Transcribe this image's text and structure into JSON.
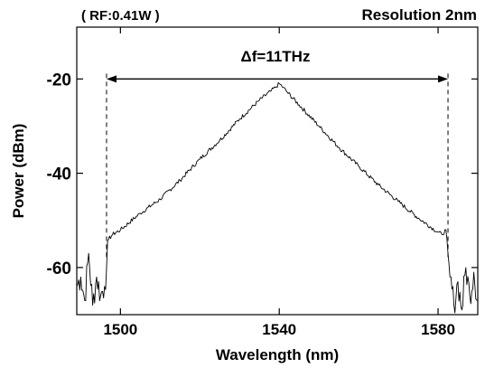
{
  "chart_data": {
    "type": "line",
    "title_left": "( RF:0.41W )",
    "title_right": "Resolution 2nm",
    "xlabel": "Wavelength (nm)",
    "ylabel": "Power (dBm)",
    "xlim": [
      1489,
      1590
    ],
    "ylim": [
      -70,
      -9
    ],
    "xticks": [
      1500,
      1540,
      1580
    ],
    "yticks": [
      -20,
      -40,
      -60
    ],
    "xtick_labels": [
      "1500",
      "1540",
      "1580"
    ],
    "ytick_labels": [
      "-20",
      "-40",
      "-60"
    ],
    "grid": false,
    "annotation": {
      "text": "Δf=11THz",
      "left_marker_x": 1496.5,
      "right_marker_x": 1582.5,
      "arrow_y": -20
    },
    "series": [
      {
        "x": [
          1489,
          1490,
          1491,
          1492,
          1493,
          1494,
          1495,
          1496,
          1496.5,
          1497,
          1498,
          1500,
          1505,
          1510,
          1515,
          1520,
          1525,
          1530,
          1535,
          1538,
          1539,
          1540,
          1541,
          1542,
          1545,
          1550,
          1555,
          1560,
          1565,
          1570,
          1575,
          1580,
          1581,
          1582,
          1582.5,
          1583,
          1584,
          1585,
          1586,
          1587,
          1588,
          1589,
          1590
        ],
        "y": [
          -64,
          -62,
          -67,
          -57,
          -68,
          -62,
          -66,
          -64,
          -60,
          -54,
          -53,
          -52,
          -48.5,
          -45.5,
          -41.5,
          -37,
          -33,
          -28.5,
          -24.5,
          -22.5,
          -21.8,
          -21,
          -21.8,
          -22.8,
          -25.5,
          -30,
          -34.5,
          -38.5,
          -42.5,
          -46,
          -49.5,
          -52.5,
          -53,
          -52,
          -57,
          -62,
          -68,
          -63,
          -69,
          -60,
          -66,
          -61,
          -67
        ]
      }
    ]
  }
}
